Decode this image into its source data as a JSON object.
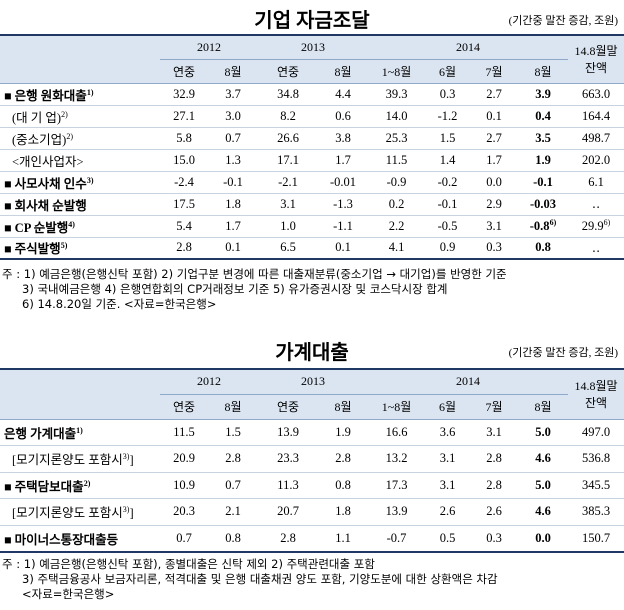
{
  "corporate": {
    "title": "기업 자금조달",
    "unit": "(기간중 말잔 증감, 조원)",
    "years": [
      {
        "text": "2012",
        "span": 2
      },
      {
        "text": "2013",
        "span": 2
      },
      {
        "text": "2014",
        "span": 4
      }
    ],
    "balance_header": [
      "14.8월말",
      "잔액"
    ],
    "subheaders": [
      "연중",
      "8월",
      "연중",
      "8월",
      "1~8월",
      "6월",
      "7월",
      "8월"
    ],
    "rows": [
      {
        "label": "■ 은행 원화대출",
        "note": "1)",
        "bold": true,
        "cells": [
          "32.9",
          "3.7",
          "34.8",
          "4.4",
          "39.3",
          "0.3",
          "2.7",
          "3.9",
          "663.0"
        ]
      },
      {
        "label": "(대 기 업)",
        "note": "2)",
        "bold": false,
        "cells": [
          "27.1",
          "3.0",
          "8.2",
          "0.6",
          "14.0",
          "-1.2",
          "0.1",
          "0.4",
          "164.4"
        ]
      },
      {
        "label": "(중소기업)",
        "note": "2)",
        "bold": false,
        "cells": [
          "5.8",
          "0.7",
          "26.6",
          "3.8",
          "25.3",
          "1.5",
          "2.7",
          "3.5",
          "498.7"
        ]
      },
      {
        "label": "<개인사업자>",
        "bold": false,
        "cells": [
          "15.0",
          "1.3",
          "17.1",
          "1.7",
          "11.5",
          "1.4",
          "1.7",
          "1.9",
          "202.0"
        ]
      },
      {
        "label": "■ 사모사채 인수",
        "note": "3)",
        "bold": true,
        "cells": [
          "-2.4",
          "-0.1",
          "-2.1",
          "-0.01",
          "-0.9",
          "-0.2",
          "0.0",
          "-0.1",
          "6.1"
        ]
      },
      {
        "label": "■ 회사채 순발행",
        "bold": true,
        "cells": [
          "17.5",
          "1.8",
          "3.1",
          "-1.3",
          "0.2",
          "-0.1",
          "2.9",
          "-0.03",
          "‥"
        ]
      },
      {
        "label": "■ CP 순발행",
        "note": "4)",
        "bold": true,
        "cells": [
          "5.4",
          "1.7",
          "1.0",
          "-1.1",
          "2.2",
          "-0.5",
          "3.1",
          {
            "text": "-0.8",
            "note": "6)"
          },
          {
            "text": "29.9",
            "note": "6)"
          }
        ]
      },
      {
        "label": "■ 주식발행",
        "note": "5)",
        "bold": true,
        "cells": [
          "2.8",
          "0.1",
          "6.5",
          "0.1",
          "4.1",
          "0.9",
          "0.3",
          "0.8",
          "‥"
        ]
      }
    ],
    "notes": [
      "주 : 1) 예금은행(은행신탁 포함)   2) 기업구분 변경에 따른 대출재분류(중소기업 → 대기업)를 반영한 기준",
      "3) 국내예금은행  4) 은행연합회의 CP거래정보 기준   5) 유가증권시장 및 코스닥시장 합계",
      "6) 14.8.20일 기준.  <자료=한국은행>"
    ]
  },
  "household": {
    "title": "가계대출",
    "unit": "(기간중 말잔 증감, 조원)",
    "years": [
      {
        "text": "2012",
        "span": 2
      },
      {
        "text": "2013",
        "span": 2
      },
      {
        "text": "2014",
        "span": 4
      }
    ],
    "balance_header": [
      "14.8월말",
      "잔액"
    ],
    "subheaders": [
      "연중",
      "8월",
      "연중",
      "8월",
      "1~8월",
      "6월",
      "7월",
      "8월"
    ],
    "rows": [
      {
        "label": "은행 가계대출",
        "note": "1)",
        "bold": true,
        "cells": [
          "11.5",
          "1.5",
          "13.9",
          "1.9",
          "16.6",
          "3.6",
          "3.1",
          "5.0",
          "497.0"
        ]
      },
      {
        "label": "[모기지론양도 포함시",
        "note": "3)",
        "after": "]",
        "bold": false,
        "cells": [
          "20.9",
          "2.8",
          "23.3",
          "2.8",
          "13.2",
          "3.1",
          "2.8",
          "4.6",
          "536.8"
        ]
      },
      {
        "label": "■ 주택담보대출",
        "note": "2)",
        "bold": true,
        "cells": [
          "10.9",
          "0.7",
          "11.3",
          "0.8",
          "17.3",
          "3.1",
          "2.8",
          "5.0",
          "345.5"
        ]
      },
      {
        "label": "[모기지론양도 포함시",
        "note": "3)",
        "after": "]",
        "bold": false,
        "cells": [
          "20.3",
          "2.1",
          "20.7",
          "1.8",
          "13.9",
          "2.6",
          "2.6",
          "4.6",
          "385.3"
        ]
      },
      {
        "label": "■ 마이너스통장대출등",
        "bold": true,
        "cells": [
          "0.7",
          "0.8",
          "2.8",
          "1.1",
          "-0.7",
          "0.5",
          "0.3",
          "0.0",
          "150.7"
        ]
      }
    ],
    "notes": [
      "주 : 1) 예금은행(은행신탁 포함), 종별대출은 신탁 제외          2) 주택관련대출 포함",
      "3) 주택금융공사 보금자리론, 적격대출 및 은행 대출채권 양도 포함, 기양도분에 대한 상환액은 차감",
      "<자료=한국은행>"
    ]
  }
}
